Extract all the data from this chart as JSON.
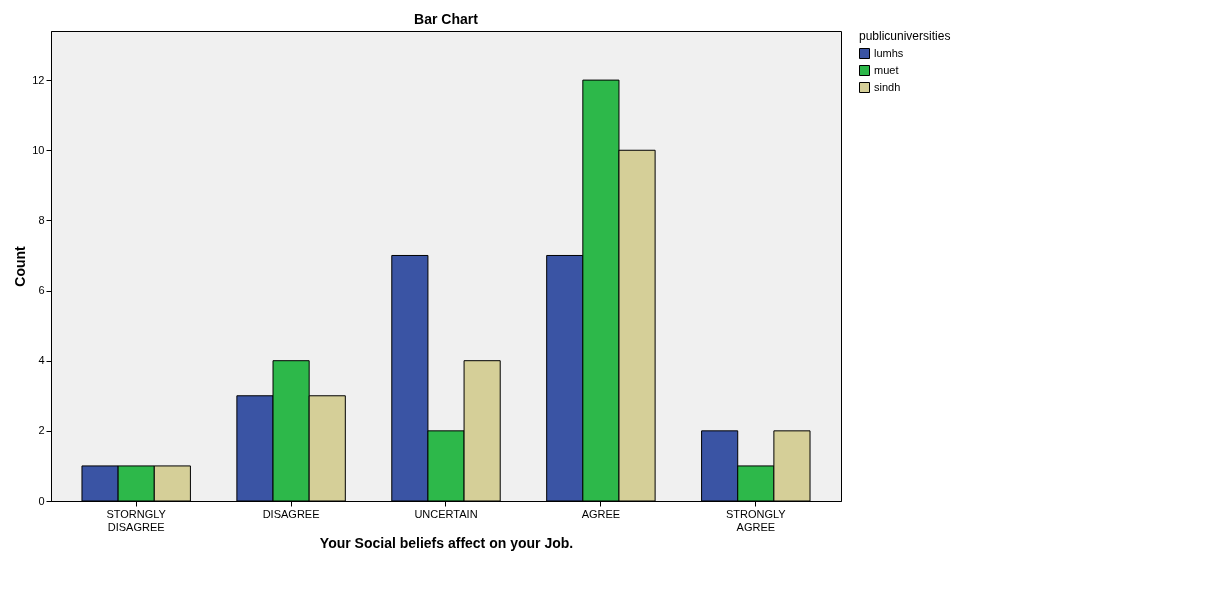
{
  "chart_data": {
    "type": "bar",
    "title": "Bar Chart",
    "xlabel": "Your Social beliefs   affect on your Job.",
    "ylabel": "Count",
    "legend_title": "publicuniversities",
    "categories": [
      "STORNGLY DISAGREE",
      "DISAGREE",
      "UNCERTAIN",
      "AGREE",
      "STRONGLY AGREE"
    ],
    "series": [
      {
        "name": "lumhs",
        "color": "#3a54a4",
        "values": [
          1,
          3,
          7,
          7,
          2
        ]
      },
      {
        "name": "muet",
        "color": "#2db84a",
        "values": [
          1,
          4,
          2,
          12,
          1
        ]
      },
      {
        "name": "sindh",
        "color": "#d5cf98",
        "values": [
          1,
          3,
          4,
          10,
          2
        ]
      }
    ],
    "ylim": [
      0,
      13.4
    ],
    "yticks": [
      0,
      2,
      4,
      6,
      8,
      10,
      12
    ],
    "grid": false,
    "legend": "top right"
  }
}
